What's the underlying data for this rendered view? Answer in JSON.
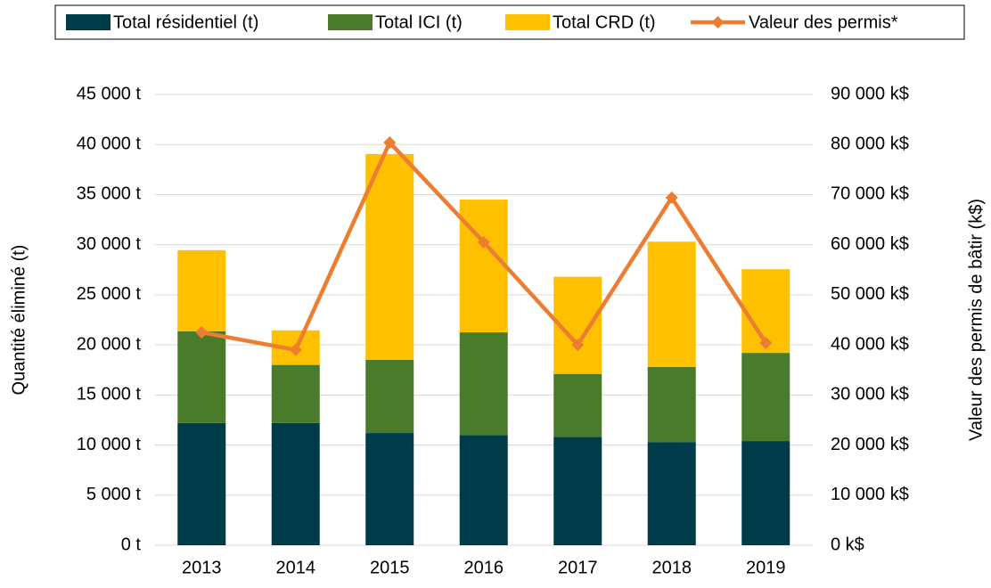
{
  "chart_data": {
    "type": "bar-line",
    "categories": [
      "2013",
      "2014",
      "2015",
      "2016",
      "2017",
      "2018",
      "2019"
    ],
    "series": [
      {
        "name": "Total résidentiel (t)",
        "type": "bar",
        "color": "#003b4a",
        "values": [
          12200,
          12200,
          11200,
          11000,
          10800,
          10300,
          10400
        ]
      },
      {
        "name": "Total ICI (t)",
        "type": "bar",
        "color": "#4a7a2b",
        "values": [
          9150,
          5800,
          7300,
          10250,
          6300,
          7500,
          8800
        ]
      },
      {
        "name": "Total CRD (t)",
        "type": "bar",
        "color": "#ffc000",
        "values": [
          8100,
          3450,
          20550,
          13250,
          9700,
          12500,
          8350
        ]
      },
      {
        "name": "Valeur des permis*",
        "type": "line",
        "axis": "y2",
        "color": "#ed7d31",
        "values": [
          42500,
          39000,
          80400,
          60500,
          40000,
          69400,
          40400
        ]
      }
    ],
    "ylabel": "Quantité éliminé (t)",
    "y2label": "Valeur des permis de bâtir (k$)",
    "ylim": [
      0,
      45000
    ],
    "yticks": [
      {
        "value": 0,
        "label": "0 t"
      },
      {
        "value": 5000,
        "label": "5 000 t"
      },
      {
        "value": 10000,
        "label": "10 000 t"
      },
      {
        "value": 15000,
        "label": "15 000 t"
      },
      {
        "value": 20000,
        "label": "20 000 t"
      },
      {
        "value": 25000,
        "label": "25 000 t"
      },
      {
        "value": 30000,
        "label": "30 000 t"
      },
      {
        "value": 35000,
        "label": "35 000 t"
      },
      {
        "value": 40000,
        "label": "40 000 t"
      },
      {
        "value": 45000,
        "label": "45 000 t"
      }
    ],
    "y2lim": [
      0,
      90000
    ],
    "y2ticks": [
      {
        "value": 0,
        "label": "0 k$"
      },
      {
        "value": 10000,
        "label": "10 000 k$"
      },
      {
        "value": 20000,
        "label": "20 000 k$"
      },
      {
        "value": 30000,
        "label": "30 000 k$"
      },
      {
        "value": 40000,
        "label": "40 000 k$"
      },
      {
        "value": 50000,
        "label": "50 000 k$"
      },
      {
        "value": 60000,
        "label": "60 000 k$"
      },
      {
        "value": 70000,
        "label": "70 000 k$"
      },
      {
        "value": 80000,
        "label": "80 000 k$"
      },
      {
        "value": 90000,
        "label": "90 000 k$"
      }
    ],
    "grid": true,
    "legend": "top"
  }
}
